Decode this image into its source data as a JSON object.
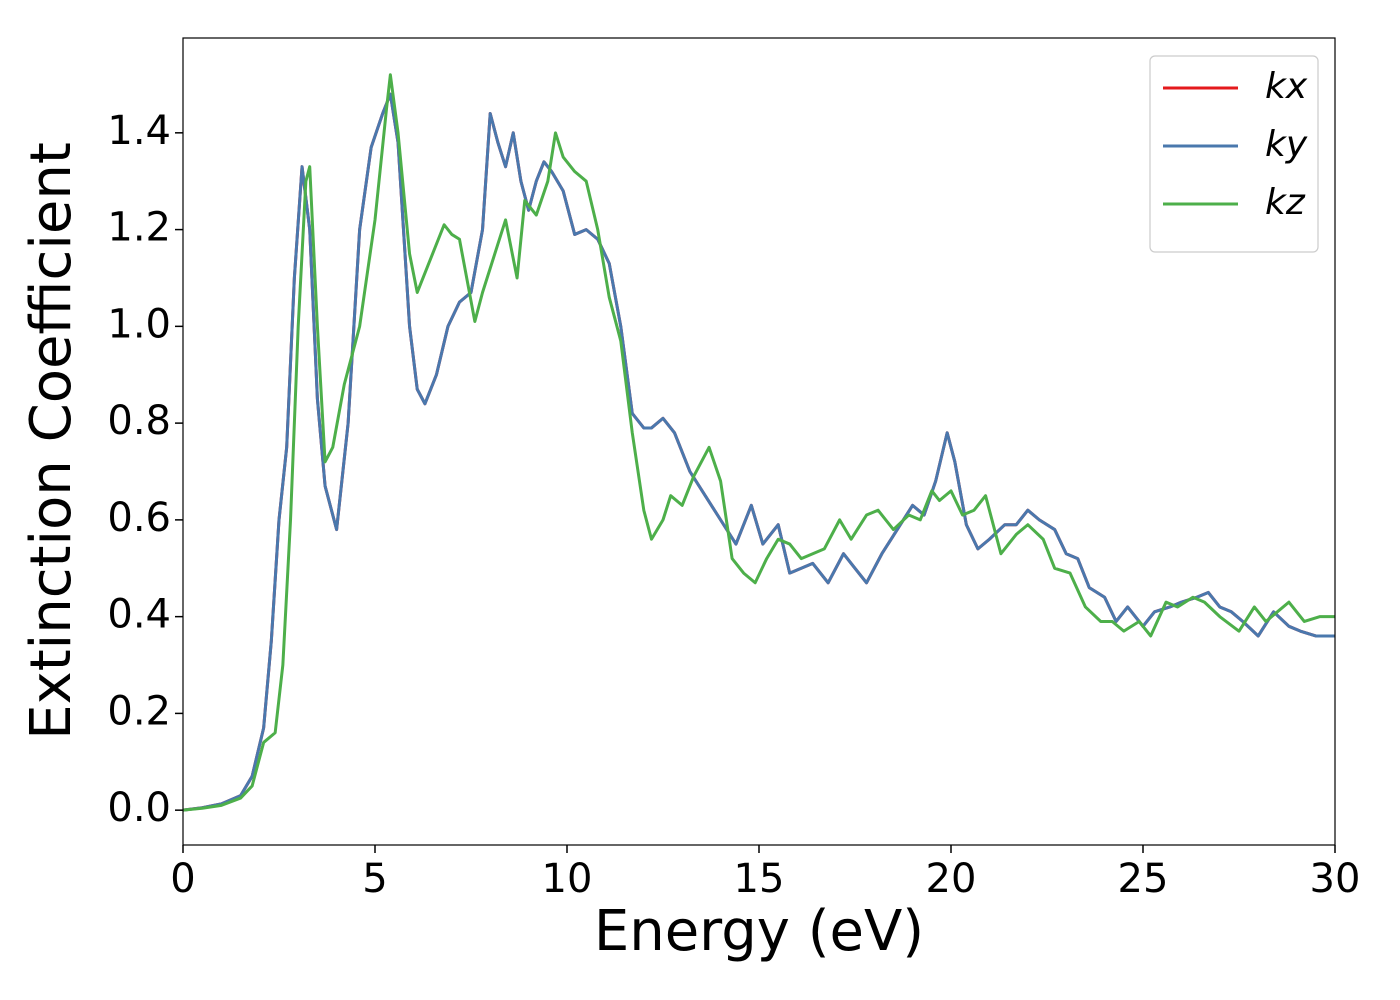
{
  "chart_data": {
    "type": "line",
    "xlabel": "Energy (eV)",
    "ylabel": "Extinction Coefficient",
    "xlim": [
      0,
      30
    ],
    "ylim": [
      -0.072,
      1.596
    ],
    "xticks": [
      0,
      5,
      10,
      15,
      20,
      25,
      30
    ],
    "yticks": [
      {
        "value": 0,
        "label": "0.0"
      },
      0.2,
      0.4,
      0.6,
      0.8,
      {
        "value": 1,
        "label": "1.0"
      },
      1.2,
      1.4
    ],
    "grid": false,
    "legend": "upper right",
    "series": [
      {
        "name": "kx",
        "color": "#e41a1c",
        "x": [
          0,
          0.5,
          1,
          1.5,
          1.8,
          2.1,
          2.3,
          2.5,
          2.7,
          2.9,
          3.1,
          3.3,
          3.5,
          3.7,
          4.0,
          4.3,
          4.6,
          4.9,
          5.2,
          5.4,
          5.6,
          5.9,
          6.1,
          6.3,
          6.6,
          6.9,
          7.2,
          7.5,
          7.8,
          8.0,
          8.2,
          8.4,
          8.6,
          8.8,
          9.0,
          9.2,
          9.4,
          9.6,
          9.9,
          10.2,
          10.5,
          10.8,
          11.1,
          11.4,
          11.7,
          12.0,
          12.2,
          12.5,
          12.8,
          13.2,
          13.6,
          14.0,
          14.4,
          14.8,
          15.1,
          15.5,
          15.8,
          16.1,
          16.4,
          16.8,
          17.2,
          17.5,
          17.8,
          18.2,
          18.6,
          19.0,
          19.3,
          19.6,
          19.9,
          20.1,
          20.4,
          20.7,
          21.0,
          21.4,
          21.7,
          22.0,
          22.3,
          22.7,
          23.0,
          23.3,
          23.6,
          24.0,
          24.3,
          24.6,
          25.0,
          25.3,
          25.7,
          26.0,
          26.4,
          26.7,
          27.0,
          27.3,
          27.6,
          28.0,
          28.4,
          28.8,
          29.1,
          29.5,
          29.8,
          30
        ],
        "values": [
          0,
          0.005,
          0.013,
          0.03,
          0.07,
          0.17,
          0.35,
          0.6,
          0.75,
          1.1,
          1.33,
          1.2,
          0.85,
          0.67,
          0.58,
          0.8,
          1.2,
          1.37,
          1.44,
          1.48,
          1.38,
          1.0,
          0.87,
          0.84,
          0.9,
          1.0,
          1.05,
          1.07,
          1.2,
          1.44,
          1.38,
          1.33,
          1.4,
          1.3,
          1.24,
          1.3,
          1.34,
          1.32,
          1.28,
          1.19,
          1.2,
          1.18,
          1.13,
          1.0,
          0.82,
          0.79,
          0.79,
          0.81,
          0.78,
          0.7,
          0.65,
          0.6,
          0.55,
          0.63,
          0.55,
          0.59,
          0.49,
          0.5,
          0.51,
          0.47,
          0.53,
          0.5,
          0.47,
          0.53,
          0.58,
          0.63,
          0.61,
          0.68,
          0.78,
          0.72,
          0.59,
          0.54,
          0.56,
          0.59,
          0.59,
          0.62,
          0.6,
          0.58,
          0.53,
          0.52,
          0.46,
          0.44,
          0.39,
          0.42,
          0.38,
          0.41,
          0.42,
          0.43,
          0.44,
          0.45,
          0.42,
          0.41,
          0.39,
          0.36,
          0.41,
          0.38,
          0.37,
          0.36,
          0.36,
          0.36
        ]
      },
      {
        "name": "ky",
        "color": "#4a78ad",
        "x": [
          0,
          0.5,
          1,
          1.5,
          1.8,
          2.1,
          2.3,
          2.5,
          2.7,
          2.9,
          3.1,
          3.3,
          3.5,
          3.7,
          4.0,
          4.3,
          4.6,
          4.9,
          5.2,
          5.4,
          5.6,
          5.9,
          6.1,
          6.3,
          6.6,
          6.9,
          7.2,
          7.5,
          7.8,
          8.0,
          8.2,
          8.4,
          8.6,
          8.8,
          9.0,
          9.2,
          9.4,
          9.6,
          9.9,
          10.2,
          10.5,
          10.8,
          11.1,
          11.4,
          11.7,
          12.0,
          12.2,
          12.5,
          12.8,
          13.2,
          13.6,
          14.0,
          14.4,
          14.8,
          15.1,
          15.5,
          15.8,
          16.1,
          16.4,
          16.8,
          17.2,
          17.5,
          17.8,
          18.2,
          18.6,
          19.0,
          19.3,
          19.6,
          19.9,
          20.1,
          20.4,
          20.7,
          21.0,
          21.4,
          21.7,
          22.0,
          22.3,
          22.7,
          23.0,
          23.3,
          23.6,
          24.0,
          24.3,
          24.6,
          25.0,
          25.3,
          25.7,
          26.0,
          26.4,
          26.7,
          27.0,
          27.3,
          27.6,
          28.0,
          28.4,
          28.8,
          29.1,
          29.5,
          29.8,
          30
        ],
        "values": [
          0,
          0.005,
          0.013,
          0.03,
          0.07,
          0.17,
          0.35,
          0.6,
          0.75,
          1.1,
          1.33,
          1.2,
          0.85,
          0.67,
          0.58,
          0.8,
          1.2,
          1.37,
          1.44,
          1.48,
          1.38,
          1.0,
          0.87,
          0.84,
          0.9,
          1.0,
          1.05,
          1.07,
          1.2,
          1.44,
          1.38,
          1.33,
          1.4,
          1.3,
          1.24,
          1.3,
          1.34,
          1.32,
          1.28,
          1.19,
          1.2,
          1.18,
          1.13,
          1.0,
          0.82,
          0.79,
          0.79,
          0.81,
          0.78,
          0.7,
          0.65,
          0.6,
          0.55,
          0.63,
          0.55,
          0.59,
          0.49,
          0.5,
          0.51,
          0.47,
          0.53,
          0.5,
          0.47,
          0.53,
          0.58,
          0.63,
          0.61,
          0.68,
          0.78,
          0.72,
          0.59,
          0.54,
          0.56,
          0.59,
          0.59,
          0.62,
          0.6,
          0.58,
          0.53,
          0.52,
          0.46,
          0.44,
          0.39,
          0.42,
          0.38,
          0.41,
          0.42,
          0.43,
          0.44,
          0.45,
          0.42,
          0.41,
          0.39,
          0.36,
          0.41,
          0.38,
          0.37,
          0.36,
          0.36,
          0.36
        ]
      },
      {
        "name": "kz",
        "color": "#4daf4a",
        "x": [
          0,
          0.5,
          1,
          1.5,
          1.8,
          2.1,
          2.4,
          2.6,
          2.8,
          3.0,
          3.2,
          3.3,
          3.5,
          3.7,
          3.9,
          4.2,
          4.6,
          5.0,
          5.3,
          5.4,
          5.6,
          5.9,
          6.1,
          6.4,
          6.8,
          7.0,
          7.2,
          7.6,
          7.8,
          8.2,
          8.4,
          8.7,
          8.9,
          9.2,
          9.5,
          9.7,
          9.9,
          10.2,
          10.5,
          10.8,
          11.1,
          11.4,
          11.7,
          12.0,
          12.2,
          12.5,
          12.7,
          13.0,
          13.3,
          13.7,
          14.0,
          14.3,
          14.6,
          14.9,
          15.2,
          15.5,
          15.8,
          16.1,
          16.4,
          16.7,
          17.1,
          17.4,
          17.8,
          18.1,
          18.5,
          18.9,
          19.2,
          19.5,
          19.7,
          20.0,
          20.3,
          20.6,
          20.9,
          21.3,
          21.7,
          22.0,
          22.4,
          22.7,
          23.1,
          23.5,
          23.9,
          24.2,
          24.5,
          24.9,
          25.2,
          25.6,
          25.9,
          26.3,
          26.6,
          27.0,
          27.5,
          27.9,
          28.2,
          28.8,
          29.2,
          29.6,
          30
        ],
        "values": [
          0,
          0.004,
          0.01,
          0.025,
          0.05,
          0.14,
          0.16,
          0.3,
          0.6,
          1.0,
          1.3,
          1.33,
          1.0,
          0.72,
          0.75,
          0.88,
          1.0,
          1.22,
          1.45,
          1.52,
          1.4,
          1.15,
          1.07,
          1.13,
          1.21,
          1.19,
          1.18,
          1.01,
          1.07,
          1.17,
          1.22,
          1.1,
          1.26,
          1.23,
          1.3,
          1.4,
          1.35,
          1.32,
          1.3,
          1.2,
          1.06,
          0.97,
          0.78,
          0.62,
          0.56,
          0.6,
          0.65,
          0.63,
          0.69,
          0.75,
          0.68,
          0.52,
          0.49,
          0.47,
          0.52,
          0.56,
          0.55,
          0.52,
          0.53,
          0.54,
          0.6,
          0.56,
          0.61,
          0.62,
          0.58,
          0.61,
          0.6,
          0.66,
          0.64,
          0.66,
          0.61,
          0.62,
          0.65,
          0.53,
          0.57,
          0.59,
          0.56,
          0.5,
          0.49,
          0.42,
          0.39,
          0.39,
          0.37,
          0.39,
          0.36,
          0.43,
          0.42,
          0.44,
          0.43,
          0.4,
          0.37,
          0.42,
          0.39,
          0.43,
          0.39,
          0.4,
          0.4
        ]
      }
    ]
  }
}
